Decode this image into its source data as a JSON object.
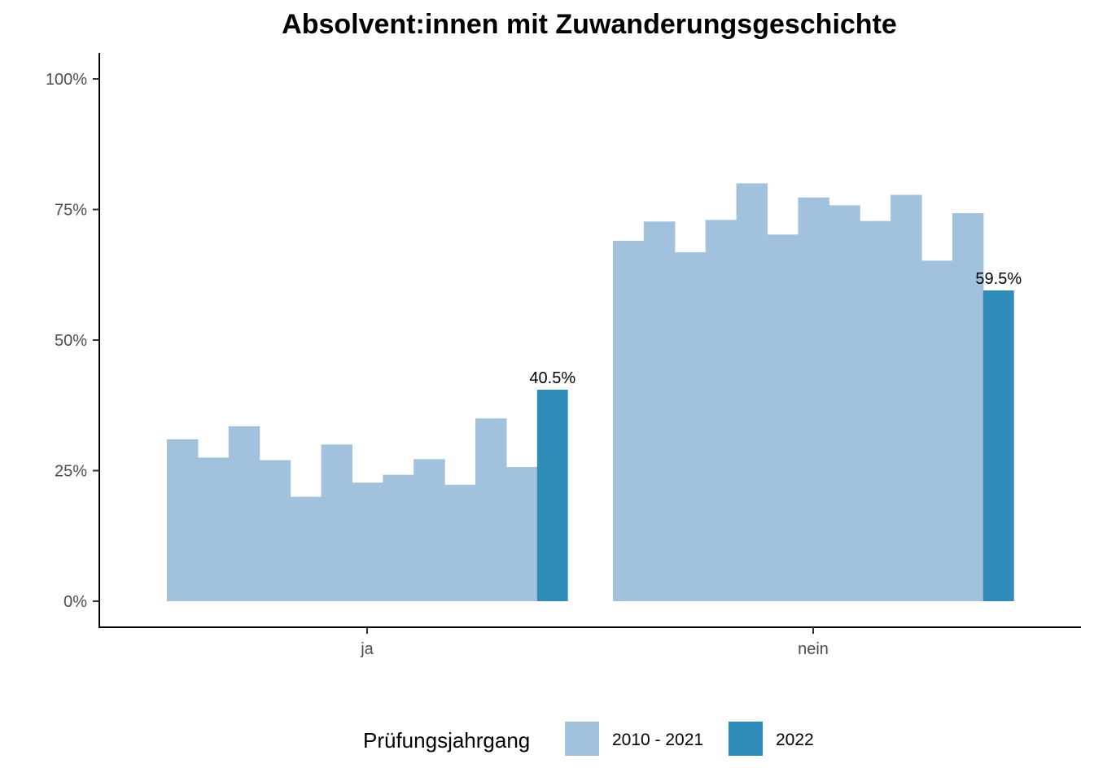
{
  "chart_data": {
    "type": "bar",
    "title": "Absolvent:innen mit Zuwanderungsgeschichte",
    "xlabel": "",
    "ylabel": "",
    "categories": [
      "ja",
      "nein"
    ],
    "ylim": [
      0,
      100
    ],
    "yticks": [
      0,
      25,
      50,
      75,
      100
    ],
    "ytick_labels": [
      "0%",
      "25%",
      "50%",
      "75%",
      "100%"
    ],
    "grid": false,
    "legend": {
      "title": "Prüfungsjahrgang",
      "position": "bottom",
      "entries": [
        {
          "label": "2010 - 2021",
          "color": "#a1c1dc"
        },
        {
          "label": "2022",
          "color": "#2f8bb8"
        }
      ]
    },
    "series": [
      {
        "name": "2010 - 2021",
        "color": "#a1c1dc",
        "values_by_category": {
          "ja": [
            31,
            27.5,
            33.5,
            27,
            20,
            30,
            22.7,
            24.2,
            27.2,
            22.3,
            35,
            25.7
          ],
          "nein": [
            69,
            72.7,
            66.8,
            73,
            80,
            70.2,
            77.3,
            75.8,
            72.8,
            77.8,
            65.2,
            74.3
          ]
        }
      },
      {
        "name": "2022",
        "color": "#2f8bb8",
        "values": [
          40.5,
          59.5
        ],
        "data_labels": [
          "40.5%",
          "59.5%"
        ]
      }
    ]
  }
}
